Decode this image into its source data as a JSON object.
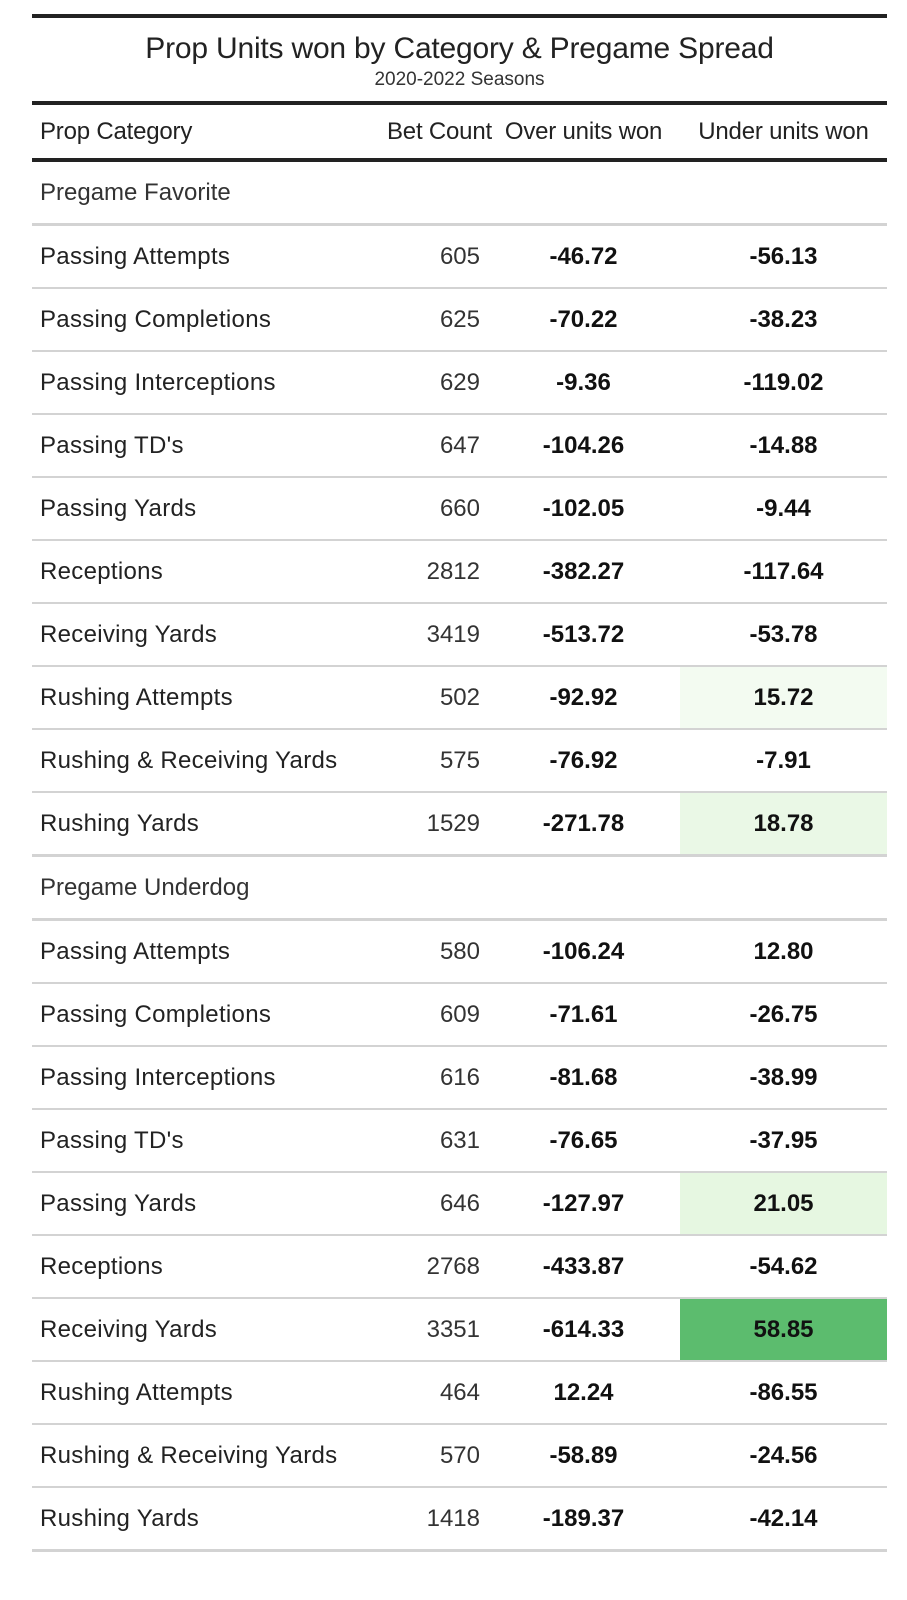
{
  "chart_data": {
    "type": "table",
    "title": "Prop Units won by Category & Pregame Spread",
    "subtitle": "2020-2022 Seasons",
    "columns": [
      "Prop Category",
      "Bet Count",
      "Over units won",
      "Under units won"
    ],
    "groups": [
      {
        "label": "Pregame Favorite",
        "rows": [
          {
            "category": "Passing Attempts",
            "count": 605,
            "over": "-46.72",
            "under": "-56.13",
            "under_fill": ""
          },
          {
            "category": "Passing Completions",
            "count": 625,
            "over": "-70.22",
            "under": "-38.23",
            "under_fill": ""
          },
          {
            "category": "Passing Interceptions",
            "count": 629,
            "over": "-9.36",
            "under": "-119.02",
            "under_fill": ""
          },
          {
            "category": "Passing TD's",
            "count": 647,
            "over": "-104.26",
            "under": "-14.88",
            "under_fill": ""
          },
          {
            "category": "Passing Yards",
            "count": 660,
            "over": "-102.05",
            "under": "-9.44",
            "under_fill": ""
          },
          {
            "category": "Receptions",
            "count": 2812,
            "over": "-382.27",
            "under": "-117.64",
            "under_fill": ""
          },
          {
            "category": "Receiving Yards",
            "count": 3419,
            "over": "-513.72",
            "under": "-53.78",
            "under_fill": ""
          },
          {
            "category": "Rushing Attempts",
            "count": 502,
            "over": "-92.92",
            "under": "15.72",
            "under_fill": "#f3fbf1"
          },
          {
            "category": "Rushing & Receiving Yards",
            "count": 575,
            "over": "-76.92",
            "under": "-7.91",
            "under_fill": ""
          },
          {
            "category": "Rushing Yards",
            "count": 1529,
            "over": "-271.78",
            "under": "18.78",
            "under_fill": "#eaf8e6"
          }
        ]
      },
      {
        "label": "Pregame Underdog",
        "rows": [
          {
            "category": "Passing Attempts",
            "count": 580,
            "over": "-106.24",
            "under": "12.80",
            "under_fill": ""
          },
          {
            "category": "Passing Completions",
            "count": 609,
            "over": "-71.61",
            "under": "-26.75",
            "under_fill": ""
          },
          {
            "category": "Passing Interceptions",
            "count": 616,
            "over": "-81.68",
            "under": "-38.99",
            "under_fill": ""
          },
          {
            "category": "Passing TD's",
            "count": 631,
            "over": "-76.65",
            "under": "-37.95",
            "under_fill": ""
          },
          {
            "category": "Passing Yards",
            "count": 646,
            "over": "-127.97",
            "under": "21.05",
            "under_fill": "#e6f7e1"
          },
          {
            "category": "Receptions",
            "count": 2768,
            "over": "-433.87",
            "under": "-54.62",
            "under_fill": ""
          },
          {
            "category": "Receiving Yards",
            "count": 3351,
            "over": "-614.33",
            "under": "58.85",
            "under_fill": "#5cbc6e"
          },
          {
            "category": "Rushing Attempts",
            "count": 464,
            "over": "12.24",
            "under": "-86.55",
            "under_fill": ""
          },
          {
            "category": "Rushing & Receiving Yards",
            "count": 570,
            "over": "-58.89",
            "under": "-24.56",
            "under_fill": ""
          },
          {
            "category": "Rushing Yards",
            "count": 1418,
            "over": "-189.37",
            "under": "-42.14",
            "under_fill": ""
          }
        ]
      }
    ]
  }
}
